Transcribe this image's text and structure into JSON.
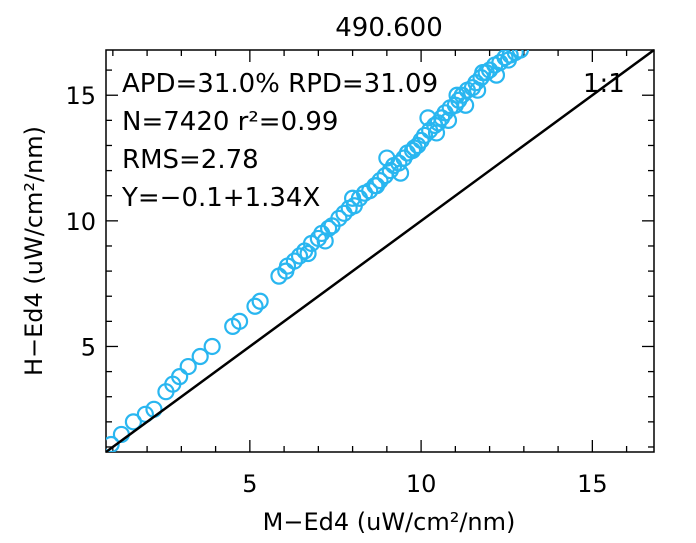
{
  "chart_data": {
    "type": "scatter",
    "title": "490.600",
    "xlabel": "M−Ed4 (uW/cm²/nm)",
    "ylabel": "H−Ed4 (uW/cm²/nm)",
    "xlim": [
      0.8,
      16.8
    ],
    "ylim": [
      0.8,
      16.8
    ],
    "xticks": [
      5,
      10,
      15
    ],
    "yticks": [
      5,
      10,
      15
    ],
    "grid": false,
    "marker_color": "#29b6f0",
    "line_color": "#000000",
    "one_to_one_label": "1:1",
    "stats": [
      "APD=31.0% RPD=31.09",
      "N=7420 r²=0.99",
      "RMS=2.78",
      "Y=−0.1+1.34X"
    ],
    "series": [
      {
        "x": [
          0.95,
          1.25,
          1.6,
          1.95,
          2.2,
          2.55,
          2.75,
          2.95,
          3.2,
          3.55,
          3.9,
          4.5,
          4.7,
          5.15,
          5.3,
          5.85,
          6.05,
          6.1,
          6.3,
          6.45,
          6.6,
          6.8,
          7.0,
          7.1,
          7.3,
          7.4,
          7.6,
          7.75,
          7.9,
          8.05,
          8.2,
          8.35,
          8.5,
          8.65,
          8.8,
          8.95,
          9.1,
          9.2,
          9.35,
          9.5,
          9.6,
          9.75,
          9.9,
          10.0,
          10.1,
          10.25,
          10.4,
          10.5,
          10.6,
          10.7,
          10.85,
          11.0,
          11.1,
          11.2,
          11.35,
          11.5,
          11.6,
          11.75,
          11.9,
          12.0,
          12.15,
          12.3,
          12.45,
          12.6,
          12.75,
          12.9,
          9.0,
          9.4,
          10.2,
          10.8,
          11.3,
          11.8,
          7.2,
          8.0,
          8.7,
          6.7,
          9.8,
          10.45,
          11.05,
          11.65,
          12.2,
          12.55
        ],
        "y": [
          1.1,
          1.5,
          2.0,
          2.3,
          2.5,
          3.2,
          3.5,
          3.8,
          4.2,
          4.6,
          5.0,
          5.8,
          6.0,
          6.6,
          6.8,
          7.8,
          8.0,
          8.2,
          8.4,
          8.6,
          8.8,
          9.1,
          9.3,
          9.5,
          9.7,
          9.8,
          10.1,
          10.3,
          10.5,
          10.6,
          10.9,
          11.1,
          11.2,
          11.4,
          11.6,
          11.8,
          12.0,
          12.2,
          12.3,
          12.5,
          12.7,
          12.8,
          13.0,
          13.2,
          13.4,
          13.6,
          13.8,
          13.9,
          14.1,
          14.3,
          14.5,
          14.6,
          14.8,
          15.0,
          15.2,
          15.3,
          15.5,
          15.7,
          15.9,
          16.0,
          16.2,
          16.3,
          16.5,
          16.6,
          16.7,
          16.8,
          12.5,
          11.9,
          14.1,
          14.0,
          14.6,
          15.9,
          9.2,
          10.9,
          11.4,
          8.7,
          12.9,
          13.5,
          15.0,
          15.2,
          15.8,
          16.4
        ]
      }
    ]
  }
}
